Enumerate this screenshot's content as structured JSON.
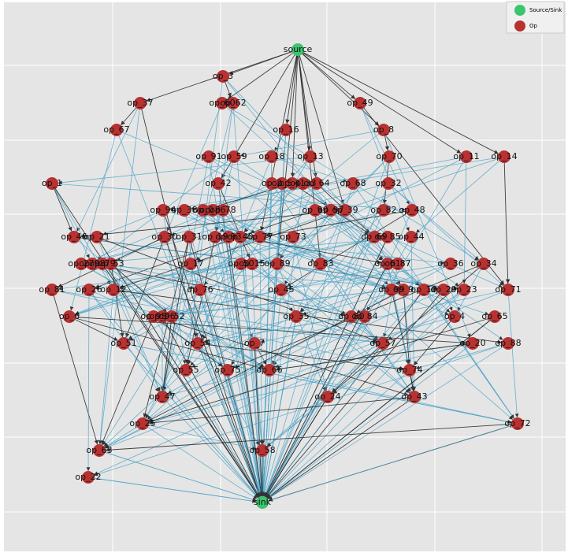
{
  "legend": [
    "Source/Sink",
    "Op"
  ],
  "nodes": [
    "source",
    "sink",
    "op_3",
    "op_60",
    "op_62",
    "op_37",
    "op_49",
    "op_67",
    "op_16",
    "op_8",
    "op_91",
    "op_59",
    "op_18",
    "op_13",
    "op_70",
    "op_11",
    "op_14",
    "op_1",
    "op_42",
    "op_2",
    "op_5",
    "op_41",
    "op_33",
    "op_64",
    "op_68",
    "op_32",
    "op_94",
    "op_38",
    "op_0",
    "op_86",
    "op_78",
    "op_90",
    "op_97",
    "op_39",
    "op_82",
    "op_48",
    "op_46",
    "op_21",
    "op_30",
    "op_31",
    "op_19",
    "op_93",
    "op_40",
    "op_77",
    "op_73",
    "op_69",
    "op_85",
    "op_44",
    "op_27",
    "op_98",
    "op_79",
    "op_53",
    "op_17",
    "op_50",
    "op_15",
    "op_89",
    "op_83",
    "op_61",
    "op_87",
    "op_36",
    "op_34",
    "op_81",
    "op_26",
    "op_12",
    "op_76",
    "op_45",
    "op_99",
    "op_9",
    "op_10",
    "op_29",
    "op_23",
    "op_71",
    "op_6",
    "op_95",
    "op_96",
    "op_52",
    "op_35",
    "op_80",
    "op_84",
    "op_4",
    "op_65",
    "op_51",
    "op_54",
    "op_7",
    "op_57",
    "op_20",
    "op_88",
    "op_55",
    "op_75",
    "op_66",
    "op_74",
    "op_47",
    "op_24",
    "op_43",
    "op_25",
    "op_72",
    "op_63",
    "op_58",
    "op_22"
  ]
}
